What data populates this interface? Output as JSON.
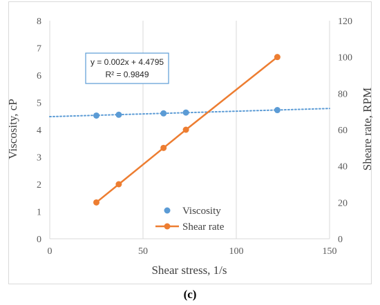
{
  "chart_data": {
    "type": "line",
    "xlabel": "Shear stress, 1/s",
    "ylabel_left": "Viscosity, cP",
    "ylabel_right": "Sheare rate, RPM",
    "xlim": [
      0,
      150
    ],
    "ylim_left": [
      0,
      8
    ],
    "ylim_right": [
      0,
      120
    ],
    "x_ticks": [
      "0",
      "50",
      "100",
      "150"
    ],
    "y_left_ticks": [
      "0",
      "1",
      "2",
      "3",
      "4",
      "5",
      "6",
      "7",
      "8"
    ],
    "y_right_ticks": [
      "0",
      "20",
      "40",
      "60",
      "80",
      "100",
      "120"
    ],
    "grid": "vertical",
    "legend_position": "bottom-center",
    "series": [
      {
        "name": "Viscosity",
        "axis": "left",
        "color": "#5b9bd5",
        "style": "markers",
        "x": [
          25,
          37,
          61,
          73,
          122
        ],
        "y": [
          4.52,
          4.55,
          4.6,
          4.63,
          4.72
        ]
      },
      {
        "name": "Shear rate",
        "axis": "right",
        "color": "#ed7d31",
        "style": "line+markers",
        "x": [
          25,
          37,
          61,
          73,
          122
        ],
        "y": [
          20,
          30,
          50,
          60,
          100
        ]
      }
    ],
    "trendline": {
      "series": "Viscosity",
      "style": "dotted",
      "color": "#5b9bd5",
      "slope": 0.002,
      "intercept": 4.4795,
      "equation": "y = 0.002x + 4.4795",
      "r2_label": "R² = 0.9849"
    },
    "caption": "(c)"
  }
}
